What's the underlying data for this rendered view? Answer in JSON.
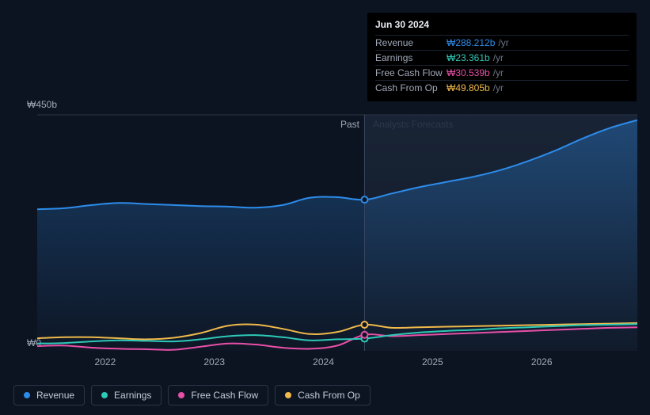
{
  "chart": {
    "background_color": "#0d1421",
    "colors": {
      "revenue": "#2d8ceb",
      "earnings": "#2ec9b7",
      "fcf": "#e84fa8",
      "cfo": "#f0b94a",
      "grid": "#1a2230",
      "axis_text": "#a0a8b8"
    },
    "y": {
      "min": 0,
      "max": 450,
      "labels": [
        "₩450b",
        "₩0"
      ]
    },
    "x": {
      "start": 2021.5,
      "end": 2027.0,
      "divider": 2024.5,
      "ticks": [
        2022,
        2023,
        2024,
        2025,
        2026
      ],
      "tick_labels": [
        "2022",
        "2023",
        "2024",
        "2025",
        "2026"
      ]
    },
    "region_labels": {
      "past": "Past",
      "future": "Analysts Forecasts"
    },
    "hover_x": 2024.5,
    "series": {
      "revenue": {
        "fill_opacity": 0.25,
        "points": [
          [
            2021.5,
            270
          ],
          [
            2021.75,
            272
          ],
          [
            2022.0,
            278
          ],
          [
            2022.25,
            282
          ],
          [
            2022.5,
            280
          ],
          [
            2022.75,
            278
          ],
          [
            2023.0,
            276
          ],
          [
            2023.25,
            275
          ],
          [
            2023.5,
            273
          ],
          [
            2023.75,
            278
          ],
          [
            2024.0,
            292
          ],
          [
            2024.25,
            293
          ],
          [
            2024.5,
            288.212
          ],
          [
            2024.75,
            300
          ],
          [
            2025.0,
            312
          ],
          [
            2025.25,
            322
          ],
          [
            2025.5,
            332
          ],
          [
            2025.75,
            345
          ],
          [
            2026.0,
            362
          ],
          [
            2026.25,
            382
          ],
          [
            2026.5,
            405
          ],
          [
            2026.75,
            425
          ],
          [
            2027.0,
            440
          ]
        ]
      },
      "earnings": {
        "points": [
          [
            2021.5,
            14
          ],
          [
            2021.75,
            15
          ],
          [
            2022.0,
            18
          ],
          [
            2022.25,
            20
          ],
          [
            2022.5,
            19
          ],
          [
            2022.75,
            18
          ],
          [
            2023.0,
            22
          ],
          [
            2023.25,
            28
          ],
          [
            2023.5,
            30
          ],
          [
            2023.75,
            26
          ],
          [
            2024.0,
            20
          ],
          [
            2024.25,
            22
          ],
          [
            2024.5,
            23.361
          ],
          [
            2024.75,
            30
          ],
          [
            2025.0,
            35
          ],
          [
            2025.25,
            38
          ],
          [
            2025.5,
            40
          ],
          [
            2025.75,
            43
          ],
          [
            2026.0,
            45
          ],
          [
            2026.25,
            47
          ],
          [
            2026.5,
            49
          ],
          [
            2026.75,
            50
          ],
          [
            2027.0,
            51
          ]
        ]
      },
      "fcf": {
        "points": [
          [
            2021.5,
            9
          ],
          [
            2021.75,
            10
          ],
          [
            2022.0,
            6
          ],
          [
            2022.25,
            4
          ],
          [
            2022.5,
            3
          ],
          [
            2022.75,
            2
          ],
          [
            2023.0,
            8
          ],
          [
            2023.25,
            14
          ],
          [
            2023.5,
            12
          ],
          [
            2023.75,
            6
          ],
          [
            2024.0,
            4
          ],
          [
            2024.25,
            10
          ],
          [
            2024.5,
            30.539
          ],
          [
            2024.75,
            28
          ],
          [
            2025.0,
            30
          ],
          [
            2025.25,
            32
          ],
          [
            2025.5,
            34
          ],
          [
            2025.75,
            36
          ],
          [
            2026.0,
            38
          ],
          [
            2026.25,
            40
          ],
          [
            2026.5,
            42
          ],
          [
            2026.75,
            44
          ],
          [
            2027.0,
            45
          ]
        ]
      },
      "cfo": {
        "points": [
          [
            2021.5,
            24
          ],
          [
            2021.75,
            26
          ],
          [
            2022.0,
            26
          ],
          [
            2022.25,
            24
          ],
          [
            2022.5,
            22
          ],
          [
            2022.75,
            25
          ],
          [
            2023.0,
            34
          ],
          [
            2023.25,
            48
          ],
          [
            2023.5,
            50
          ],
          [
            2023.75,
            42
          ],
          [
            2024.0,
            32
          ],
          [
            2024.25,
            36
          ],
          [
            2024.5,
            49.805
          ],
          [
            2024.75,
            44
          ],
          [
            2025.0,
            45
          ],
          [
            2025.25,
            46
          ],
          [
            2025.5,
            47
          ],
          [
            2025.75,
            48
          ],
          [
            2026.0,
            49
          ],
          [
            2026.25,
            50
          ],
          [
            2026.5,
            51
          ],
          [
            2026.75,
            52
          ],
          [
            2027.0,
            53
          ]
        ]
      }
    }
  },
  "tooltip": {
    "date": "Jun 30 2024",
    "rows": [
      {
        "label": "Revenue",
        "value": "₩288.212b",
        "unit": "/yr",
        "color": "#2d8ceb"
      },
      {
        "label": "Earnings",
        "value": "₩23.361b",
        "unit": "/yr",
        "color": "#2ec9b7"
      },
      {
        "label": "Free Cash Flow",
        "value": "₩30.539b",
        "unit": "/yr",
        "color": "#e84fa8"
      },
      {
        "label": "Cash From Op",
        "value": "₩49.805b",
        "unit": "/yr",
        "color": "#f0b94a"
      }
    ]
  },
  "legend": [
    {
      "label": "Revenue",
      "color": "#2d8ceb",
      "key": "revenue"
    },
    {
      "label": "Earnings",
      "color": "#2ec9b7",
      "key": "earnings"
    },
    {
      "label": "Free Cash Flow",
      "color": "#e84fa8",
      "key": "fcf"
    },
    {
      "label": "Cash From Op",
      "color": "#f0b94a",
      "key": "cfo"
    }
  ]
}
